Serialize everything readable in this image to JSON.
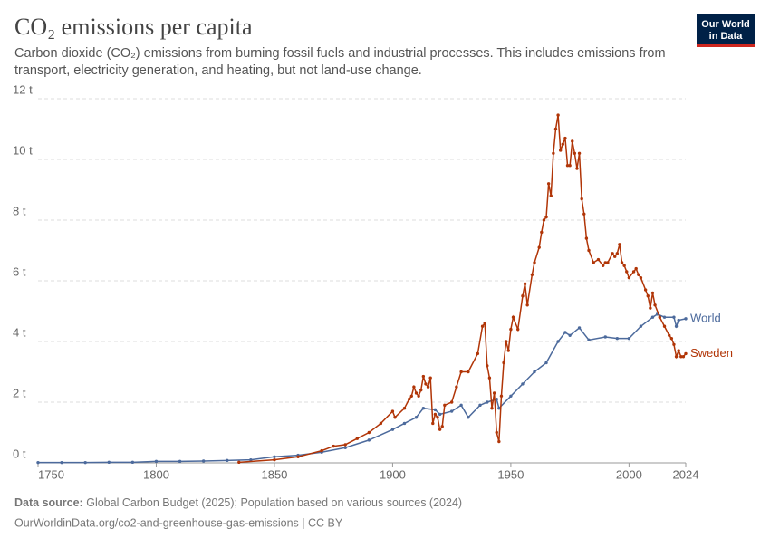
{
  "chart_data": {
    "type": "line",
    "title": "CO₂ emissions per capita",
    "subtitle": "Carbon dioxide (CO₂) emissions from burning fossil fuels and industrial processes. This includes emissions from transport, electricity generation, and heating, but not land-use change.",
    "source_label": "Data source:",
    "source": "Global Carbon Budget (2025); Population based on various sources (2024)",
    "footer": "OurWorldinData.org/co2-and-greenhouse-gas-emissions | CC BY",
    "logo": [
      "Our World",
      "in Data"
    ],
    "xlim": [
      1750,
      2024
    ],
    "xticks": [
      1750,
      1800,
      1850,
      1900,
      1950,
      2000,
      2024
    ],
    "ylim": [
      0,
      12
    ],
    "yticks": [
      {
        "value": 0,
        "label": "0 t"
      },
      {
        "value": 2,
        "label": "2 t"
      },
      {
        "value": 4,
        "label": "4 t"
      },
      {
        "value": 6,
        "label": "6 t"
      },
      {
        "value": 8,
        "label": "8 t"
      },
      {
        "value": 10,
        "label": "10 t"
      },
      {
        "value": 12,
        "label": "12 t"
      }
    ],
    "grid": true,
    "series": [
      {
        "name": "World",
        "color": "#4c6a9c",
        "x": [
          1750,
          1760,
          1770,
          1780,
          1790,
          1800,
          1810,
          1820,
          1830,
          1840,
          1850,
          1860,
          1870,
          1880,
          1890,
          1900,
          1905,
          1910,
          1913,
          1918,
          1920,
          1925,
          1929,
          1932,
          1937,
          1940,
          1944,
          1945,
          1950,
          1955,
          1960,
          1965,
          1970,
          1973,
          1975,
          1979,
          1983,
          1990,
          1995,
          2000,
          2005,
          2010,
          2012,
          2015,
          2019,
          2020,
          2021,
          2024
        ],
        "values": [
          0.01,
          0.01,
          0.01,
          0.02,
          0.02,
          0.05,
          0.05,
          0.06,
          0.08,
          0.1,
          0.2,
          0.25,
          0.35,
          0.5,
          0.75,
          1.1,
          1.3,
          1.5,
          1.8,
          1.75,
          1.6,
          1.7,
          1.9,
          1.5,
          1.9,
          2.0,
          2.1,
          1.8,
          2.2,
          2.6,
          3.0,
          3.3,
          4.0,
          4.3,
          4.2,
          4.45,
          4.05,
          4.15,
          4.1,
          4.1,
          4.5,
          4.8,
          4.9,
          4.8,
          4.8,
          4.5,
          4.7,
          4.75
        ]
      },
      {
        "name": "Sweden",
        "color": "#b13507",
        "x": [
          1835,
          1850,
          1860,
          1870,
          1875,
          1880,
          1885,
          1890,
          1895,
          1900,
          1901,
          1905,
          1907,
          1908,
          1909,
          1910,
          1911,
          1912,
          1913,
          1914,
          1915,
          1916,
          1917,
          1918,
          1919,
          1920,
          1921,
          1922,
          1925,
          1927,
          1929,
          1932,
          1936,
          1938,
          1939,
          1940,
          1941,
          1942,
          1943,
          1944,
          1945,
          1946,
          1947,
          1948,
          1949,
          1950,
          1951,
          1953,
          1955,
          1956,
          1957,
          1959,
          1960,
          1962,
          1963,
          1964,
          1965,
          1966,
          1967,
          1968,
          1969,
          1970,
          1971,
          1972,
          1973,
          1974,
          1975,
          1976,
          1977,
          1978,
          1979,
          1980,
          1981,
          1982,
          1983,
          1985,
          1987,
          1989,
          1990,
          1991,
          1993,
          1994,
          1995,
          1996,
          1997,
          1998,
          1999,
          2000,
          2002,
          2003,
          2004,
          2005,
          2007,
          2008,
          2009,
          2010,
          2011,
          2013,
          2015,
          2017,
          2018,
          2019,
          2020,
          2021,
          2022,
          2023,
          2024
        ],
        "values": [
          0.02,
          0.1,
          0.2,
          0.4,
          0.55,
          0.6,
          0.8,
          1.0,
          1.3,
          1.7,
          1.5,
          1.8,
          2.1,
          2.2,
          2.5,
          2.3,
          2.2,
          2.4,
          2.85,
          2.6,
          2.5,
          2.8,
          1.3,
          1.6,
          1.5,
          1.1,
          1.2,
          1.9,
          2.0,
          2.5,
          3.0,
          3.0,
          3.6,
          4.5,
          4.6,
          3.2,
          2.8,
          1.8,
          2.3,
          1.0,
          0.7,
          2.2,
          3.3,
          4.0,
          3.7,
          4.4,
          4.8,
          4.4,
          5.5,
          5.9,
          5.2,
          6.2,
          6.6,
          7.1,
          7.6,
          8.0,
          8.1,
          9.2,
          8.8,
          10.2,
          11.0,
          11.46,
          10.3,
          10.5,
          10.7,
          9.8,
          9.8,
          10.6,
          10.2,
          9.7,
          10.2,
          8.7,
          8.2,
          7.4,
          7.0,
          6.6,
          6.7,
          6.5,
          6.6,
          6.6,
          6.9,
          6.8,
          6.9,
          7.2,
          6.6,
          6.5,
          6.3,
          6.1,
          6.3,
          6.4,
          6.2,
          6.1,
          5.7,
          5.5,
          5.1,
          5.6,
          5.2,
          4.8,
          4.5,
          4.2,
          4.1,
          3.9,
          3.5,
          3.7,
          3.5,
          3.5,
          3.6
        ]
      }
    ]
  }
}
